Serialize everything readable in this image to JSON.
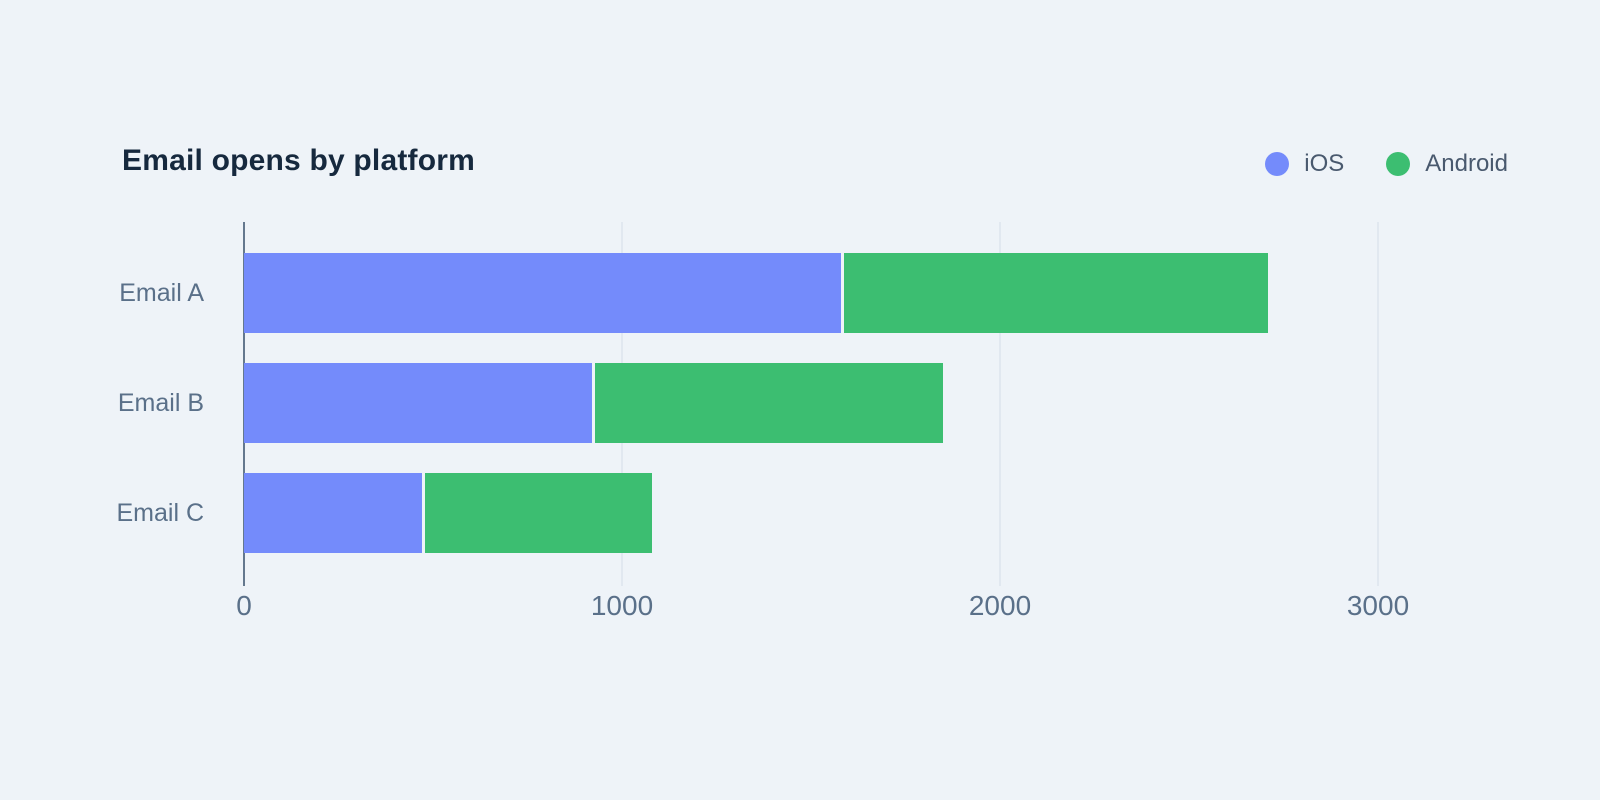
{
  "chart": {
    "title": "Email opens by platform"
  },
  "chart_data": {
    "type": "bar",
    "orientation": "horizontal",
    "stacked": true,
    "title": "Email opens by platform",
    "categories": [
      "Email A",
      "Email B",
      "Email C"
    ],
    "series": [
      {
        "name": "iOS",
        "color": "#748BFB",
        "values": [
          1580,
          920,
          470
        ]
      },
      {
        "name": "Android",
        "color": "#3CBE71",
        "values": [
          1130,
          930,
          610
        ]
      }
    ],
    "totals": [
      2710,
      1850,
      1080
    ],
    "xlim": [
      0,
      3000
    ],
    "x_ticks": [
      0,
      1000,
      2000,
      3000
    ],
    "x_tick_labels": [
      "0",
      "1000",
      "2000",
      "3000"
    ],
    "xlabel": "",
    "ylabel": "",
    "grid": "vertical-gridlines",
    "legend_position": "top-right"
  },
  "colors": {
    "background": "#EEF3F8",
    "title": "#16293E",
    "axis_line": "#64788E",
    "gridline": "#E1E8F0",
    "tick_label": "#5A7089",
    "legend_label": "#49596E",
    "ios": "#748BFB",
    "android": "#3CBE71"
  }
}
